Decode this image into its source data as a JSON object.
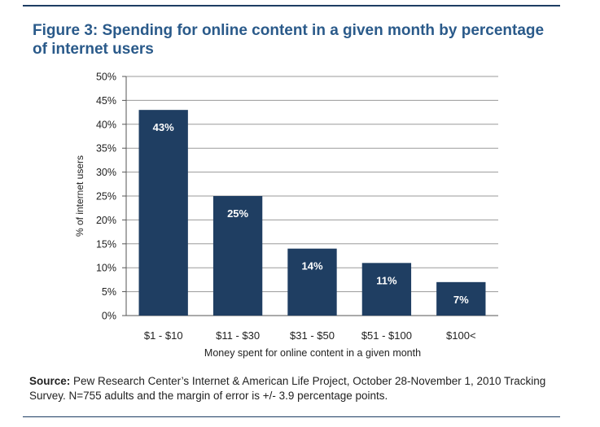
{
  "page": {
    "title": "Figure 3: Spending for online content in a given month by percentage of internet users",
    "source_label": "Source:",
    "source_text": "Pew Research Center’s Internet & American Life Project, October 28-November 1, 2010 Tracking Survey. N=755 adults and the margin of error is +/- 3.9 percentage points."
  },
  "colors": {
    "bar": "#1f3e62",
    "title": "#2a5a8a",
    "rule": "#1d3d63",
    "grid": "#9a9a9a"
  },
  "chart_data": {
    "type": "bar",
    "title": "Figure 3: Spending for online content in a given month by percentage of internet users",
    "xlabel": "Money spent for online content in a given month",
    "ylabel": "% of internet users",
    "categories": [
      "$1 - $10",
      "$11 - $30",
      "$31 - $50",
      "$51 - $100",
      "$100<"
    ],
    "values": [
      43,
      25,
      14,
      11,
      7
    ],
    "data_labels": [
      "43%",
      "25%",
      "14%",
      "11%",
      "7%"
    ],
    "ylim": [
      0,
      50
    ],
    "yticks": [
      0,
      5,
      10,
      15,
      20,
      25,
      30,
      35,
      40,
      45,
      50
    ],
    "ytick_labels": [
      "0%",
      "5%",
      "10%",
      "15%",
      "20%",
      "25%",
      "30%",
      "35%",
      "40%",
      "45%",
      "50%"
    ],
    "grid": true,
    "legend": "none"
  }
}
